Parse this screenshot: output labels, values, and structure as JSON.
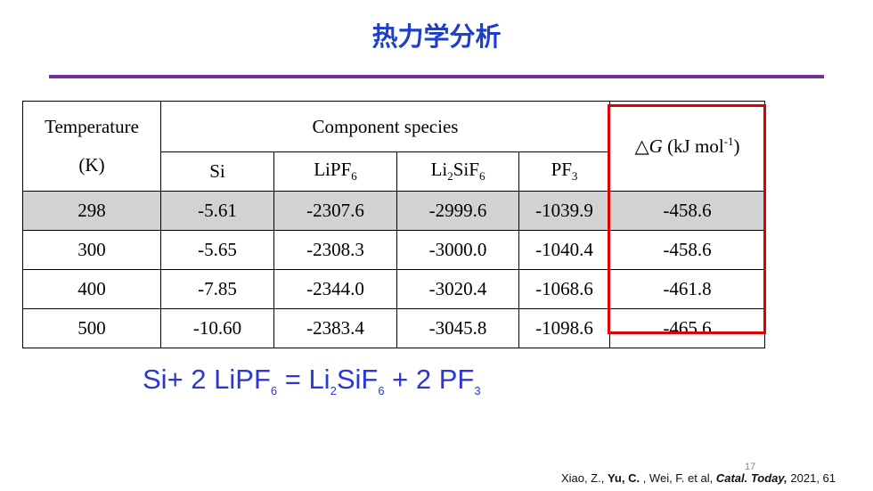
{
  "header": {
    "title": "热力学分析"
  },
  "table": {
    "temp_header": [
      "Temperature",
      "(K)"
    ],
    "group_header": "Component species",
    "species": [
      [
        {
          "t": "Si"
        }
      ],
      [
        {
          "t": "LiPF"
        },
        {
          "sub": "6"
        }
      ],
      [
        {
          "t": "Li"
        },
        {
          "sub": "2"
        },
        {
          "t": "SiF"
        },
        {
          "sub": "6"
        }
      ],
      [
        {
          "t": "PF"
        },
        {
          "sub": "3"
        }
      ]
    ],
    "dg_header": [
      {
        "t": "△"
      },
      {
        "i": "G"
      },
      {
        "t": " (kJ mol"
      },
      {
        "sup": "-1"
      },
      {
        "t": ")"
      }
    ],
    "rows": [
      [
        "298",
        "-5.61",
        "-2307.6",
        "-2999.6",
        "-1039.9",
        "-458.6"
      ],
      [
        "300",
        "-5.65",
        "-2308.3",
        "-3000.0",
        "-1040.4",
        "-458.6"
      ],
      [
        "400",
        "-7.85",
        "-2344.0",
        "-3020.4",
        "-1068.6",
        "-461.8"
      ],
      [
        "500",
        "-10.60",
        "-2383.4",
        "-3045.8",
        "-1098.6",
        "-465.6"
      ]
    ]
  },
  "equation": [
    {
      "t": "Si+ 2 LiPF"
    },
    {
      "sub": "6"
    },
    {
      "t": " = Li"
    },
    {
      "sub": "2"
    },
    {
      "t": "SiF"
    },
    {
      "sub": "6"
    },
    {
      "t": " + 2 PF"
    },
    {
      "sub": "3"
    }
  ],
  "page_number": "17",
  "citation": [
    {
      "t": "Xiao, Z., "
    },
    {
      "b": "Yu, C."
    },
    {
      "t": " , Wei, F. et al, "
    },
    {
      "bi": "Catal. Today,"
    },
    {
      "t": " 2021, 61"
    }
  ]
}
